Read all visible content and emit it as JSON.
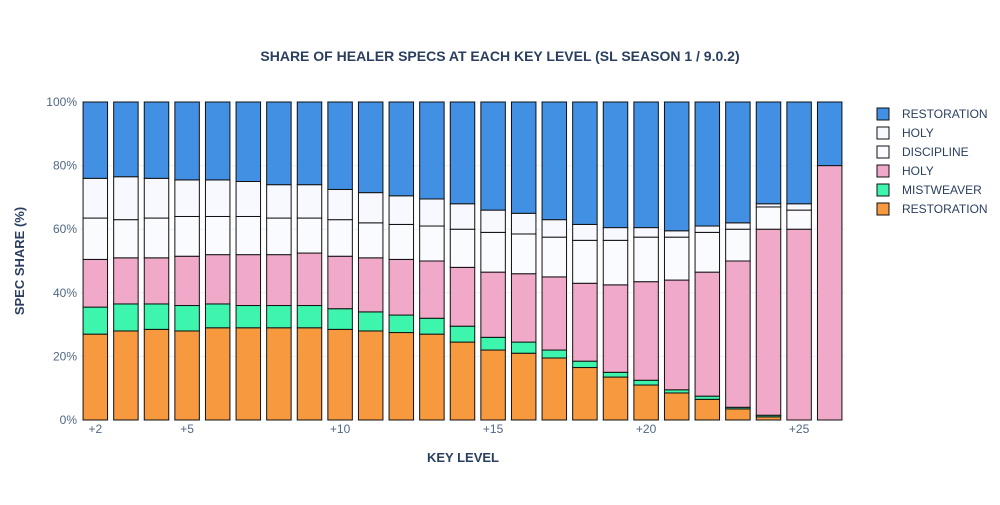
{
  "chart_data": {
    "type": "bar",
    "stacked": true,
    "title": "SHARE OF HEALER SPECS AT EACH KEY LEVEL (SL SEASON 1 / 9.0.2)",
    "xlabel": "KEY LEVEL",
    "ylabel": "SPEC SHARE (%)",
    "ylim": [
      0,
      100
    ],
    "yticks": [
      0,
      20,
      40,
      60,
      80,
      100
    ],
    "ytick_labels": [
      "0%",
      "20%",
      "40%",
      "60%",
      "80%",
      "100%"
    ],
    "x": [
      2,
      3,
      4,
      5,
      6,
      7,
      8,
      9,
      10,
      11,
      12,
      13,
      14,
      15,
      16,
      17,
      18,
      19,
      20,
      21,
      22,
      23,
      24,
      25,
      26
    ],
    "xticks": [
      2,
      5,
      10,
      15,
      20,
      25
    ],
    "xtick_labels": [
      "+2",
      "+5",
      "+10",
      "+15",
      "+20",
      "+25"
    ],
    "grid": true,
    "legend_position": "right",
    "series": [
      {
        "name": "RESTORATION",
        "color": "#f7993f",
        "values": [
          27,
          28,
          28.5,
          28,
          29,
          29,
          29,
          29,
          28.5,
          28,
          27.5,
          27,
          24.5,
          22,
          21,
          19.5,
          16.5,
          13.5,
          11,
          8.5,
          6.5,
          3.5,
          1,
          0,
          0
        ]
      },
      {
        "name": "MISTWEAVER",
        "color": "#3df5ac",
        "values": [
          8.5,
          8.5,
          8,
          8,
          7.5,
          7,
          7,
          7,
          6.5,
          6,
          5.5,
          5,
          5,
          4,
          3.5,
          2.5,
          2,
          1.5,
          1.5,
          1,
          1,
          0.5,
          0.5,
          0,
          0
        ]
      },
      {
        "name": "HOLY",
        "color": "#f0a9c8",
        "values": [
          15,
          14.5,
          14.5,
          15.5,
          15.5,
          16,
          16,
          16.5,
          16.5,
          17,
          17.5,
          18,
          18.5,
          20.5,
          21.5,
          23,
          24.5,
          27.5,
          31,
          34.5,
          39,
          46,
          58.5,
          60,
          80
        ]
      },
      {
        "name": "DISCIPLINE",
        "color": "#fafbfe",
        "values": [
          13,
          12,
          12.5,
          12.5,
          12,
          12,
          11.5,
          11,
          11.5,
          11,
          11,
          11,
          12,
          12.5,
          12.5,
          12.5,
          13.5,
          14,
          14,
          13.5,
          12.5,
          10,
          7,
          6,
          0
        ]
      },
      {
        "name": "HOLY",
        "color": "#f8f9ff",
        "values": [
          12.5,
          13.5,
          12.5,
          11.5,
          11.5,
          11,
          10.5,
          10.5,
          9.5,
          9.5,
          9,
          8.5,
          8,
          7,
          6.5,
          5.5,
          5,
          4,
          3,
          2,
          2,
          2,
          1,
          2,
          0
        ]
      },
      {
        "name": "RESTORATION",
        "color": "#4290e4",
        "values": [
          24,
          23.5,
          24,
          24.5,
          24.5,
          25,
          26,
          26,
          27.5,
          28.5,
          29.5,
          30.5,
          32,
          34,
          35,
          37,
          38.5,
          39.5,
          39.5,
          40.5,
          39,
          38,
          32,
          32,
          20
        ]
      }
    ]
  }
}
